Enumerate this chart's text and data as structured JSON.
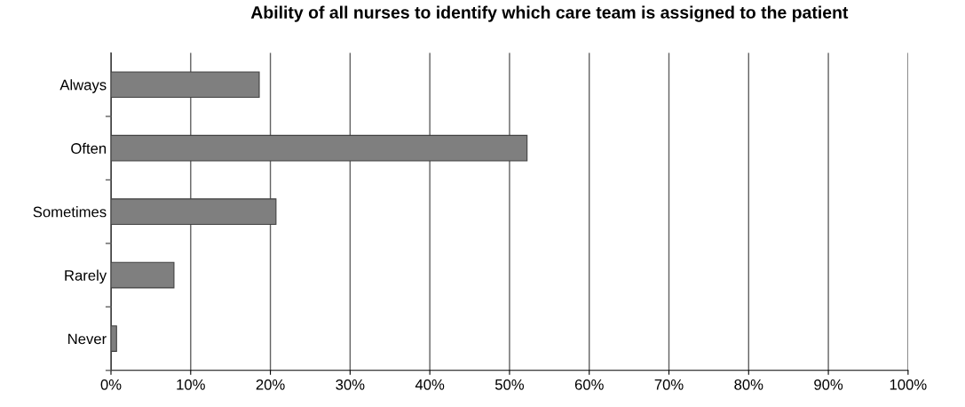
{
  "chart_data": {
    "type": "bar",
    "orientation": "horizontal",
    "title": "Ability of all nurses to identify which care team is assigned to the patient",
    "categories": [
      "Always",
      "Often",
      "Sometimes",
      "Rarely",
      "Never"
    ],
    "values": [
      18.6,
      52.2,
      20.7,
      7.9,
      0.7
    ],
    "color": "#7f7f7f",
    "xlim": [
      0,
      100
    ],
    "xticks": [
      {
        "value": 0,
        "label": "0%"
      },
      {
        "value": 10,
        "label": "10%"
      },
      {
        "value": 20,
        "label": "20%"
      },
      {
        "value": 30,
        "label": "30%"
      },
      {
        "value": 40,
        "label": "40%"
      },
      {
        "value": 50,
        "label": "50%"
      },
      {
        "value": 60,
        "label": "60%"
      },
      {
        "value": 70,
        "label": "70%"
      },
      {
        "value": 80,
        "label": "80%"
      },
      {
        "value": 90,
        "label": "90%"
      },
      {
        "value": 100,
        "label": "100%"
      }
    ],
    "grid": "x"
  }
}
